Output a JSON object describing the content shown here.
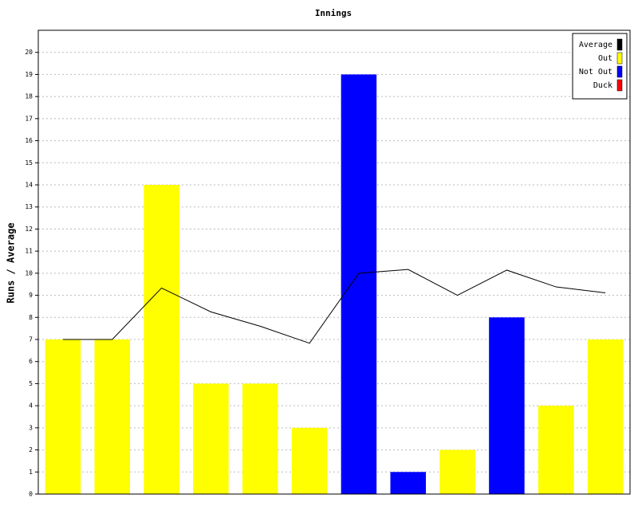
{
  "chart_data": {
    "type": "bar",
    "title": "Innings",
    "y_label": "Runs / Average",
    "categories": [
      null,
      null,
      null,
      null,
      null,
      null,
      null,
      null,
      null,
      null,
      null,
      null
    ],
    "series": [
      {
        "name": "Average",
        "color": "#000000",
        "type": "line",
        "values": [
          7,
          7,
          9.33,
          8.25,
          7.6,
          6.83,
          10,
          10.17,
          9,
          10.14,
          9.38,
          9.11
        ]
      },
      {
        "name": "Out",
        "color": "#ffff00",
        "type": "bar",
        "values": [
          7,
          7,
          14,
          5,
          5,
          3,
          null,
          null,
          2,
          null,
          4,
          7
        ]
      },
      {
        "name": "Not Out",
        "color": "#0000ff",
        "type": "bar",
        "values": [
          null,
          null,
          null,
          null,
          null,
          null,
          19,
          1,
          null,
          8,
          null,
          null
        ]
      },
      {
        "name": "Duck",
        "color": "#ff0000",
        "type": "bar",
        "values": [
          null,
          null,
          null,
          null,
          null,
          null,
          null,
          null,
          null,
          null,
          null,
          null
        ]
      }
    ],
    "ylim": [
      0,
      21
    ],
    "yticks": [
      0,
      1,
      2,
      3,
      4,
      5,
      6,
      7,
      8,
      9,
      10,
      11,
      12,
      13,
      14,
      15,
      16,
      17,
      18,
      19,
      20
    ],
    "grid": true,
    "legend": "top-right"
  }
}
